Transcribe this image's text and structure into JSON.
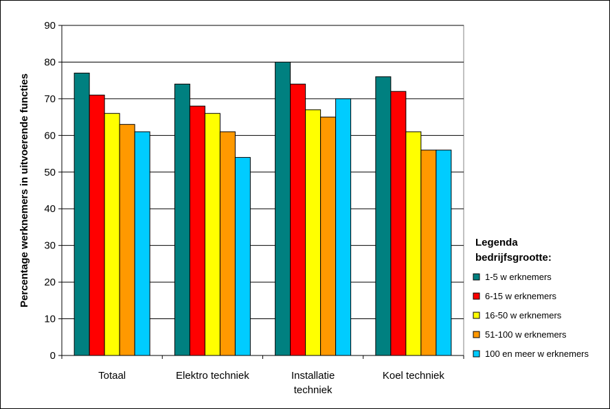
{
  "chart_data": {
    "type": "bar",
    "title": "",
    "xlabel": "",
    "ylabel": "Percentage werknemers in uitvoerende functies",
    "ylim": [
      0,
      90
    ],
    "yticks": [
      0,
      10,
      20,
      30,
      40,
      50,
      60,
      70,
      80,
      90
    ],
    "grid": true,
    "legend_position": "right",
    "legend_title": [
      "Legenda",
      "bedrijfsgrootte:"
    ],
    "categories": [
      [
        "Totaal"
      ],
      [
        "Elektro techniek"
      ],
      [
        "Installatie",
        "techniek"
      ],
      [
        "Koel techniek"
      ]
    ],
    "series": [
      {
        "name": "1-5 w erknemers",
        "color": "#008080",
        "values": [
          77,
          74,
          80,
          76
        ]
      },
      {
        "name": "6-15 w erknemers",
        "color": "#ff0000",
        "values": [
          71,
          68,
          74,
          72
        ]
      },
      {
        "name": "16-50 w erknemers",
        "color": "#ffff00",
        "values": [
          66,
          66,
          67,
          61
        ]
      },
      {
        "name": "51-100 w erknemers",
        "color": "#ff9900",
        "values": [
          63,
          61,
          65,
          56
        ]
      },
      {
        "name": "100 en meer w erknemers",
        "color": "#00ccff",
        "values": [
          61,
          54,
          70,
          56
        ]
      }
    ]
  }
}
